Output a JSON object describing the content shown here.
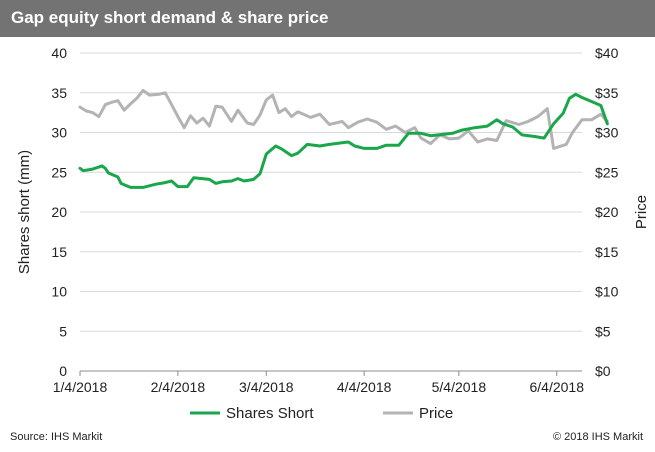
{
  "title": "Gap equity short demand & share price",
  "footer": {
    "source": "Source: IHS Markit",
    "copyright": "© 2018 IHS Markit"
  },
  "chart_data": {
    "type": "line",
    "title": "Gap equity short demand & share price",
    "ylabel": "Shares short (mm)",
    "y2label": "Price",
    "xlim": [
      "2018-01-04",
      "2018-06-12"
    ],
    "ylim": [
      0,
      40
    ],
    "y2lim": [
      0,
      40
    ],
    "x_ticks": [
      "1/4/2018",
      "2/4/2018",
      "3/4/2018",
      "4/4/2018",
      "5/4/2018",
      "6/4/2018"
    ],
    "x_tick_dates": [
      "2018-01-04",
      "2018-02-04",
      "2018-03-04",
      "2018-04-04",
      "2018-05-04",
      "2018-06-04"
    ],
    "y_ticks": [
      "0",
      "5",
      "10",
      "15",
      "20",
      "25",
      "30",
      "35",
      "40"
    ],
    "y2_ticks": [
      "$0",
      "$5",
      "$10",
      "$15",
      "$20",
      "$25",
      "$30",
      "$35",
      "$40"
    ],
    "grid": "horizontal",
    "legend_position": "bottom",
    "series": [
      {
        "name": "Shares Short",
        "axis": "left",
        "color": "#1aa64a",
        "points": [
          [
            "2018-01-04",
            25.5
          ],
          [
            "2018-01-05",
            25.2
          ],
          [
            "2018-01-08",
            25.4
          ],
          [
            "2018-01-11",
            25.8
          ],
          [
            "2018-01-12",
            25.5
          ],
          [
            "2018-01-13",
            24.9
          ],
          [
            "2018-01-16",
            24.4
          ],
          [
            "2018-01-17",
            23.6
          ],
          [
            "2018-01-20",
            23.1
          ],
          [
            "2018-01-24",
            23.1
          ],
          [
            "2018-01-28",
            23.5
          ],
          [
            "2018-01-31",
            23.7
          ],
          [
            "2018-02-02",
            23.9
          ],
          [
            "2018-02-04",
            23.2
          ],
          [
            "2018-02-07",
            23.2
          ],
          [
            "2018-02-09",
            24.3
          ],
          [
            "2018-02-14",
            24.1
          ],
          [
            "2018-02-16",
            23.6
          ],
          [
            "2018-02-18",
            23.8
          ],
          [
            "2018-02-21",
            23.9
          ],
          [
            "2018-02-23",
            24.2
          ],
          [
            "2018-02-25",
            23.9
          ],
          [
            "2018-02-28",
            24.1
          ],
          [
            "2018-03-02",
            24.8
          ],
          [
            "2018-03-04",
            27.3
          ],
          [
            "2018-03-07",
            28.3
          ],
          [
            "2018-03-09",
            27.9
          ],
          [
            "2018-03-12",
            27.1
          ],
          [
            "2018-03-14",
            27.4
          ],
          [
            "2018-03-17",
            28.5
          ],
          [
            "2018-03-21",
            28.3
          ],
          [
            "2018-03-24",
            28.5
          ],
          [
            "2018-03-28",
            28.7
          ],
          [
            "2018-03-30",
            28.8
          ],
          [
            "2018-04-01",
            28.3
          ],
          [
            "2018-04-04",
            28.0
          ],
          [
            "2018-04-08",
            28.0
          ],
          [
            "2018-04-11",
            28.4
          ],
          [
            "2018-04-15",
            28.4
          ],
          [
            "2018-04-18",
            29.9
          ],
          [
            "2018-04-22",
            29.9
          ],
          [
            "2018-04-25",
            29.6
          ],
          [
            "2018-05-02",
            29.9
          ],
          [
            "2018-05-05",
            30.3
          ],
          [
            "2018-05-09",
            30.6
          ],
          [
            "2018-05-13",
            30.8
          ],
          [
            "2018-05-16",
            31.6
          ],
          [
            "2018-05-18",
            31.1
          ],
          [
            "2018-05-21",
            30.7
          ],
          [
            "2018-05-24",
            29.7
          ],
          [
            "2018-05-28",
            29.5
          ],
          [
            "2018-05-31",
            29.3
          ],
          [
            "2018-06-03",
            31.1
          ],
          [
            "2018-06-06",
            32.4
          ],
          [
            "2018-06-08",
            34.3
          ],
          [
            "2018-06-10",
            34.8
          ],
          [
            "2018-06-12",
            34.4
          ],
          [
            "2018-06-15",
            33.9
          ],
          [
            "2018-06-18",
            33.4
          ],
          [
            "2018-06-20",
            31.1
          ]
        ]
      },
      {
        "name": "Price",
        "axis": "right",
        "color": "#b3b3b3",
        "points": [
          [
            "2018-01-04",
            33.2
          ],
          [
            "2018-01-06",
            32.7
          ],
          [
            "2018-01-08",
            32.5
          ],
          [
            "2018-01-10",
            32.0
          ],
          [
            "2018-01-12",
            33.5
          ],
          [
            "2018-01-14",
            33.8
          ],
          [
            "2018-01-16",
            34.0
          ],
          [
            "2018-01-18",
            32.8
          ],
          [
            "2018-01-20",
            33.6
          ],
          [
            "2018-01-22",
            34.3
          ],
          [
            "2018-01-24",
            35.3
          ],
          [
            "2018-01-26",
            34.7
          ],
          [
            "2018-01-29",
            34.8
          ],
          [
            "2018-01-31",
            35.0
          ],
          [
            "2018-02-02",
            33.5
          ],
          [
            "2018-02-04",
            32.0
          ],
          [
            "2018-02-06",
            30.6
          ],
          [
            "2018-02-08",
            32.1
          ],
          [
            "2018-02-10",
            31.2
          ],
          [
            "2018-02-12",
            31.8
          ],
          [
            "2018-02-14",
            30.8
          ],
          [
            "2018-02-16",
            33.3
          ],
          [
            "2018-02-18",
            33.2
          ],
          [
            "2018-02-21",
            31.4
          ],
          [
            "2018-02-23",
            32.8
          ],
          [
            "2018-02-26",
            31.2
          ],
          [
            "2018-02-28",
            31.0
          ],
          [
            "2018-03-02",
            32.2
          ],
          [
            "2018-03-04",
            34.1
          ],
          [
            "2018-03-06",
            34.7
          ],
          [
            "2018-03-08",
            32.5
          ],
          [
            "2018-03-10",
            33.0
          ],
          [
            "2018-03-12",
            32.0
          ],
          [
            "2018-03-14",
            32.6
          ],
          [
            "2018-03-18",
            31.9
          ],
          [
            "2018-03-21",
            32.3
          ],
          [
            "2018-03-24",
            31.0
          ],
          [
            "2018-03-28",
            31.4
          ],
          [
            "2018-03-30",
            30.6
          ],
          [
            "2018-04-02",
            31.3
          ],
          [
            "2018-04-05",
            31.7
          ],
          [
            "2018-04-08",
            31.3
          ],
          [
            "2018-04-11",
            30.4
          ],
          [
            "2018-04-14",
            30.8
          ],
          [
            "2018-04-17",
            30.0
          ],
          [
            "2018-04-20",
            30.6
          ],
          [
            "2018-04-22",
            29.3
          ],
          [
            "2018-04-25",
            28.6
          ],
          [
            "2018-04-28",
            29.7
          ],
          [
            "2018-05-01",
            29.2
          ],
          [
            "2018-05-04",
            29.3
          ],
          [
            "2018-05-07",
            30.2
          ],
          [
            "2018-05-10",
            28.8
          ],
          [
            "2018-05-13",
            29.2
          ],
          [
            "2018-05-16",
            29.0
          ],
          [
            "2018-05-19",
            31.5
          ],
          [
            "2018-05-23",
            31.0
          ],
          [
            "2018-05-26",
            31.4
          ],
          [
            "2018-05-29",
            32.0
          ],
          [
            "2018-06-01",
            33.0
          ],
          [
            "2018-06-03",
            28.0
          ],
          [
            "2018-06-07",
            28.5
          ],
          [
            "2018-06-09",
            30.0
          ],
          [
            "2018-06-12",
            31.6
          ],
          [
            "2018-06-15",
            31.6
          ],
          [
            "2018-06-18",
            32.3
          ],
          [
            "2018-06-20",
            31.4
          ]
        ]
      }
    ]
  }
}
